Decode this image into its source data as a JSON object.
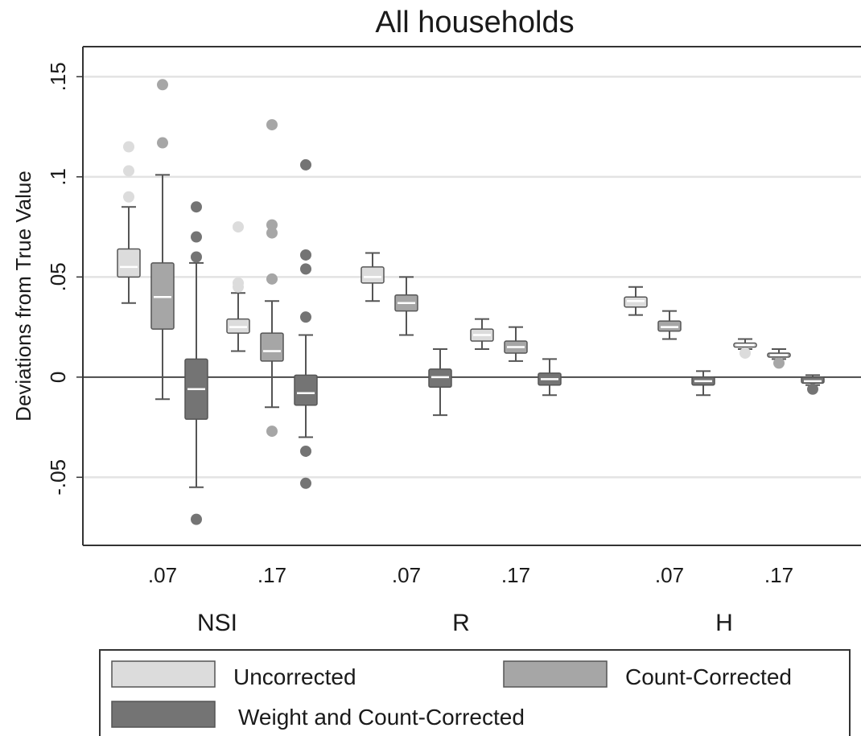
{
  "chart_data": {
    "type": "box",
    "title": "All households",
    "ylabel": "Deviations from True Value",
    "xlabel": "",
    "ylim": [
      -0.084,
      0.165
    ],
    "yticks": [
      {
        "value": -0.05,
        "label": "-.05"
      },
      {
        "value": 0,
        "label": "0"
      },
      {
        "value": 0.05,
        "label": ".05"
      },
      {
        "value": 0.1,
        "label": ".1"
      },
      {
        "value": 0.15,
        "label": ".15"
      }
    ],
    "grid": true,
    "reference_line": 0,
    "groups": [
      {
        "name": "NSI",
        "subgroups": [
          ".07",
          ".17"
        ]
      },
      {
        "name": "R",
        "subgroups": [
          ".07",
          ".17"
        ]
      },
      {
        "name": "H",
        "subgroups": [
          ".07",
          ".17"
        ]
      }
    ],
    "series": [
      {
        "name": "Uncorrected",
        "color": "#dcdcdc",
        "median_color": "#ffffff"
      },
      {
        "name": "Count-Corrected",
        "color": "#a6a6a6",
        "median_color": "#ffffff"
      },
      {
        "name": "Weight and Count-Corrected",
        "color": "#747474",
        "median_color": "#ffffff"
      }
    ],
    "boxes": [
      {
        "group": "NSI",
        "sub": ".07",
        "series": 0,
        "whislo": 0.037,
        "q1": 0.05,
        "med": 0.055,
        "q3": 0.064,
        "whishi": 0.085,
        "fliers": [
          0.09,
          0.103,
          0.115
        ]
      },
      {
        "group": "NSI",
        "sub": ".07",
        "series": 1,
        "whislo": -0.011,
        "q1": 0.024,
        "med": 0.04,
        "q3": 0.057,
        "whishi": 0.101,
        "fliers": [
          0.117,
          0.146
        ]
      },
      {
        "group": "NSI",
        "sub": ".07",
        "series": 2,
        "whislo": -0.055,
        "q1": -0.021,
        "med": -0.006,
        "q3": 0.009,
        "whishi": 0.057,
        "fliers": [
          -0.071,
          0.06,
          0.07,
          0.085
        ]
      },
      {
        "group": "NSI",
        "sub": ".17",
        "series": 0,
        "whislo": 0.013,
        "q1": 0.022,
        "med": 0.025,
        "q3": 0.029,
        "whishi": 0.042,
        "fliers": [
          0.045,
          0.047,
          0.075
        ]
      },
      {
        "group": "NSI",
        "sub": ".17",
        "series": 1,
        "whislo": -0.015,
        "q1": 0.008,
        "med": 0.013,
        "q3": 0.022,
        "whishi": 0.038,
        "fliers": [
          -0.027,
          0.049,
          0.072,
          0.076,
          0.126
        ]
      },
      {
        "group": "NSI",
        "sub": ".17",
        "series": 2,
        "whislo": -0.03,
        "q1": -0.014,
        "med": -0.008,
        "q3": 0.001,
        "whishi": 0.021,
        "fliers": [
          -0.053,
          -0.037,
          0.03,
          0.054,
          0.061,
          0.106
        ]
      },
      {
        "group": "R",
        "sub": ".07",
        "series": 0,
        "whislo": 0.038,
        "q1": 0.047,
        "med": 0.05,
        "q3": 0.055,
        "whishi": 0.062,
        "fliers": []
      },
      {
        "group": "R",
        "sub": ".07",
        "series": 1,
        "whislo": 0.021,
        "q1": 0.033,
        "med": 0.037,
        "q3": 0.041,
        "whishi": 0.05,
        "fliers": []
      },
      {
        "group": "R",
        "sub": ".07",
        "series": 2,
        "whislo": -0.019,
        "q1": -0.005,
        "med": 0.0,
        "q3": 0.004,
        "whishi": 0.014,
        "fliers": []
      },
      {
        "group": "R",
        "sub": ".17",
        "series": 0,
        "whislo": 0.014,
        "q1": 0.018,
        "med": 0.021,
        "q3": 0.024,
        "whishi": 0.029,
        "fliers": []
      },
      {
        "group": "R",
        "sub": ".17",
        "series": 1,
        "whislo": 0.008,
        "q1": 0.012,
        "med": 0.015,
        "q3": 0.018,
        "whishi": 0.025,
        "fliers": []
      },
      {
        "group": "R",
        "sub": ".17",
        "series": 2,
        "whislo": -0.009,
        "q1": -0.004,
        "med": -0.001,
        "q3": 0.002,
        "whishi": 0.009,
        "fliers": []
      },
      {
        "group": "H",
        "sub": ".07",
        "series": 0,
        "whislo": 0.031,
        "q1": 0.035,
        "med": 0.038,
        "q3": 0.04,
        "whishi": 0.045,
        "fliers": []
      },
      {
        "group": "H",
        "sub": ".07",
        "series": 1,
        "whislo": 0.019,
        "q1": 0.023,
        "med": 0.025,
        "q3": 0.028,
        "whishi": 0.033,
        "fliers": []
      },
      {
        "group": "H",
        "sub": ".07",
        "series": 2,
        "whislo": -0.009,
        "q1": -0.004,
        "med": -0.002,
        "q3": 0.0,
        "whishi": 0.003,
        "fliers": []
      },
      {
        "group": "H",
        "sub": ".17",
        "series": 0,
        "whislo": 0.014,
        "q1": 0.015,
        "med": 0.016,
        "q3": 0.017,
        "whishi": 0.019,
        "fliers": [
          0.012
        ]
      },
      {
        "group": "H",
        "sub": ".17",
        "series": 1,
        "whislo": 0.009,
        "q1": 0.01,
        "med": 0.011,
        "q3": 0.012,
        "whishi": 0.014,
        "fliers": [
          0.007
        ]
      },
      {
        "group": "H",
        "sub": ".17",
        "series": 2,
        "whislo": -0.004,
        "q1": -0.003,
        "med": -0.002,
        "q3": 0.0,
        "whishi": 0.001,
        "fliers": [
          -0.006
        ]
      }
    ]
  }
}
